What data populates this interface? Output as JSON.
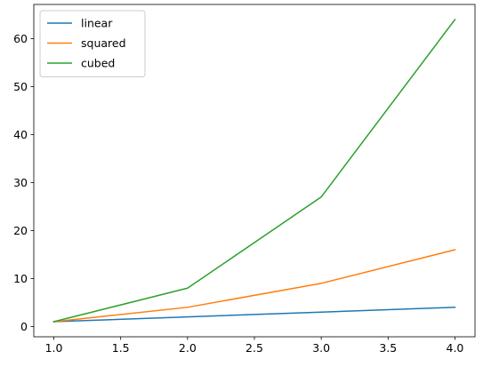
{
  "chart_data": {
    "type": "line",
    "x": [
      1.0,
      2.0,
      3.0,
      4.0
    ],
    "series": [
      {
        "name": "linear",
        "values": [
          1,
          2,
          3,
          4
        ],
        "color": "#1f77b4"
      },
      {
        "name": "squared",
        "values": [
          1,
          4,
          9,
          16
        ],
        "color": "#ff7f0e"
      },
      {
        "name": "cubed",
        "values": [
          1,
          8,
          27,
          64
        ],
        "color": "#2ca02c"
      }
    ],
    "xticks": [
      1.0,
      1.5,
      2.0,
      2.5,
      3.0,
      3.5,
      4.0
    ],
    "xtick_labels": [
      "1.0",
      "1.5",
      "2.0",
      "2.5",
      "3.0",
      "3.5",
      "4.0"
    ],
    "yticks": [
      0,
      10,
      20,
      30,
      40,
      50,
      60
    ],
    "ytick_labels": [
      "0",
      "10",
      "20",
      "30",
      "40",
      "50",
      "60"
    ],
    "xlim": [
      0.85,
      4.15
    ],
    "ylim": [
      -2.15,
      67.15
    ],
    "grid": false,
    "legend_position": "top-left"
  }
}
